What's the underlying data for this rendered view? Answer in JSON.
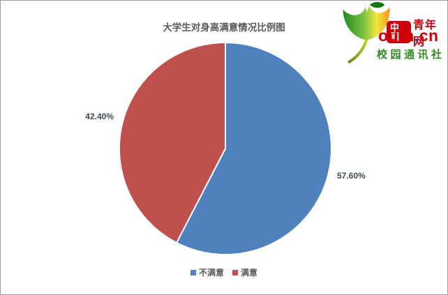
{
  "title": "大学生对身高满意情况比例图",
  "logo": {
    "badge": "中國",
    "brand_cn": "青年网",
    "brand_en": "outh",
    "dot": ".",
    "brand_tld": "cn",
    "subtitle": "校园通讯社",
    "red": "#cf000e",
    "green": "#2e8b22"
  },
  "chart_data": {
    "type": "pie",
    "title": "大学生对身高满意情况比例图",
    "labels": [
      "不满意",
      "满意"
    ],
    "values": [
      57.6,
      42.4
    ],
    "value_labels": [
      "57.60%",
      "42.40%"
    ],
    "colors": [
      "#4f81bd",
      "#c0504d"
    ],
    "start_angle_deg": -90,
    "direction": "clockwise",
    "legend_position": "bottom"
  }
}
